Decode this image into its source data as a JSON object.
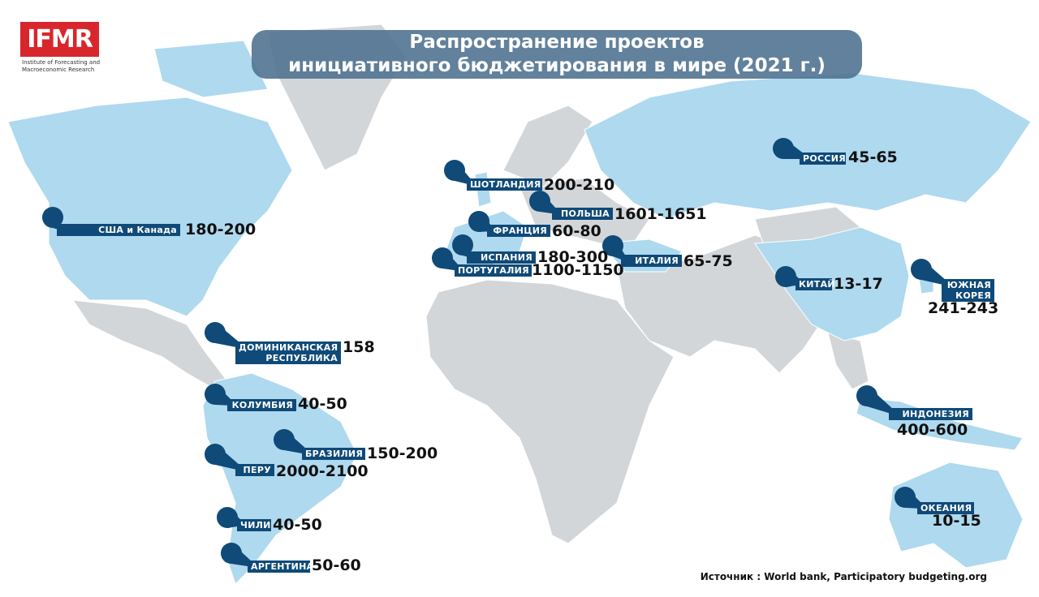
{
  "logo": {
    "name": "IFMR",
    "subtitle": [
      "Institute of Forecasting and",
      "Macroeconomic Research"
    ]
  },
  "title": [
    "Распространение проектов",
    "инициативного бюджетирования в мире (2021 г.)"
  ],
  "markers": [
    {
      "label": "США и Канада",
      "value": "180-200"
    },
    {
      "label": "ШОТЛАНДИЯ",
      "value": "200-210"
    },
    {
      "label": "ПОЛЬША",
      "value": "1601-1651"
    },
    {
      "label": "ФРАНЦИЯ",
      "value": "60-80"
    },
    {
      "label": "ИСПАНИЯ",
      "value": "180-300"
    },
    {
      "label": "ПОРТУГАЛИЯ",
      "value": "1100-1150"
    },
    {
      "label": "ИТАЛИЯ",
      "value": "65-75"
    },
    {
      "label": "РОССИЯ",
      "value": "45-65"
    },
    {
      "label": "КИТАЙ",
      "value": "13-17"
    },
    {
      "label": "ЮЖНАЯ КОРЕЯ",
      "value": "241-243"
    },
    {
      "label": "ДОМИНИКАНСКАЯ РЕСПУБЛИКА",
      "value": "158"
    },
    {
      "label": "КОЛУМБИЯ",
      "value": "40-50"
    },
    {
      "label": "БРАЗИЛИЯ",
      "value": "150-200"
    },
    {
      "label": "ПЕРУ",
      "value": "2000-2100"
    },
    {
      "label": "ЧИЛИ",
      "value": "40-50"
    },
    {
      "label": "АРГЕНТИНА",
      "value": "50-60"
    },
    {
      "label": "ИНДОНЕЗИЯ",
      "value": "400-600"
    },
    {
      "label": "ОКЕАНИЯ",
      "value": "10-15"
    }
  ],
  "source": "Источник : World bank, Participatory budgeting.org"
}
